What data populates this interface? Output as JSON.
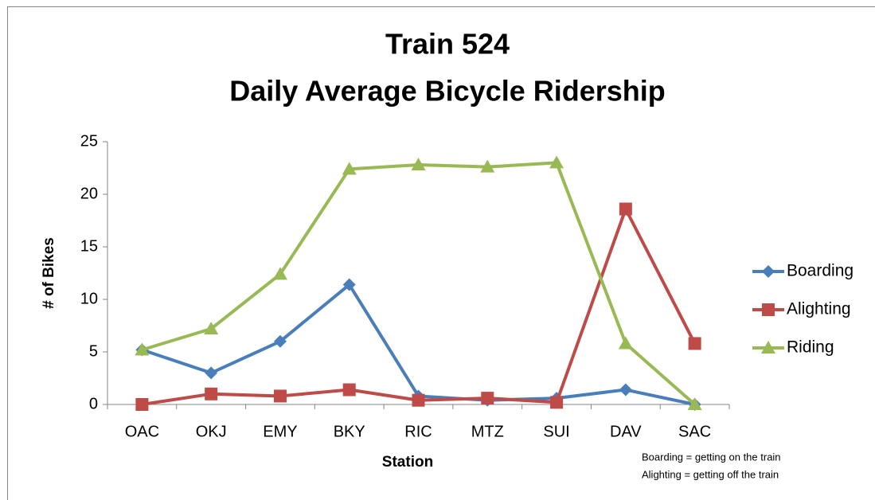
{
  "chart_data": {
    "type": "line",
    "title": "Train 524",
    "subtitle": "Daily Average Bicycle Ridership",
    "x_label": "Station",
    "y_label": "# of Bikes",
    "categories": [
      "OAC",
      "OKJ",
      "EMY",
      "BKY",
      "RIC",
      "MTZ",
      "SUI",
      "DAV",
      "SAC"
    ],
    "series": [
      {
        "name": "Boarding",
        "color": "#4a7ebb",
        "marker": "diamond",
        "values": [
          5.2,
          3,
          6,
          11.4,
          0.8,
          0.4,
          0.6,
          1.4,
          0
        ]
      },
      {
        "name": "Alighting",
        "color": "#be4b48",
        "marker": "square",
        "values": [
          0,
          1,
          0.8,
          1.4,
          0.4,
          0.6,
          0.2,
          18.6,
          5.8
        ]
      },
      {
        "name": "Riding",
        "color": "#98b954",
        "marker": "triangle",
        "values": [
          5.2,
          7.2,
          12.4,
          22.4,
          22.8,
          22.6,
          23,
          5.8,
          0
        ]
      }
    ],
    "ylim": [
      0,
      25
    ],
    "yticks": [
      0,
      5,
      10,
      15,
      20,
      25
    ],
    "grid": false,
    "legend": "right",
    "annotations": [
      "Boarding = getting on the train",
      "Alighting = getting off the train"
    ]
  }
}
